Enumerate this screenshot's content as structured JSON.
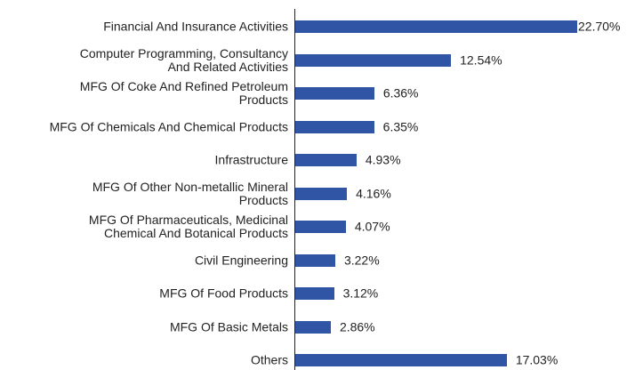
{
  "chart_data": {
    "type": "bar",
    "orientation": "horizontal",
    "color": "#2f55a4",
    "categories": [
      "Financial And Insurance Activities",
      "Computer Programming, Consultancy\nAnd Related Activities",
      "MFG Of Coke And Refined Petroleum\nProducts",
      "MFG Of Chemicals And Chemical Products",
      "Infrastructure",
      "MFG Of Other Non-metallic Mineral\nProducts",
      "MFG Of Pharmaceuticals, Medicinal\nChemical And Botanical Products",
      "Civil Engineering",
      "MFG Of Food Products",
      "MFG Of Basic Metals",
      "Others"
    ],
    "values": [
      22.7,
      12.54,
      6.36,
      6.35,
      4.93,
      4.16,
      4.07,
      3.22,
      3.12,
      2.86,
      17.03
    ],
    "value_labels": [
      "22.70%",
      "12.54%",
      "6.36%",
      "6.35%",
      "4.93%",
      "4.16%",
      "4.07%",
      "3.22%",
      "3.12%",
      "2.86%",
      "17.03%"
    ]
  }
}
